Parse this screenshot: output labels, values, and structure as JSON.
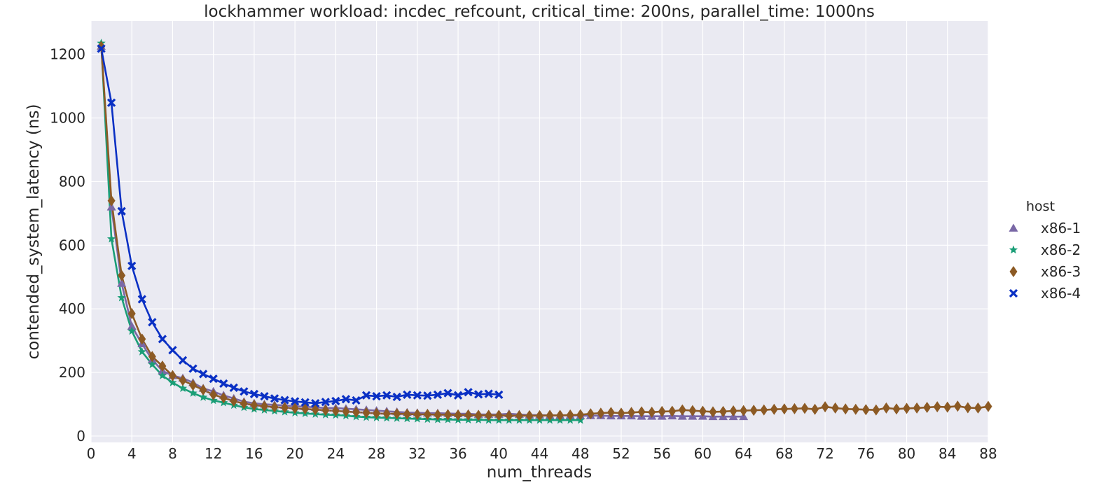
{
  "chart_data": {
    "type": "line",
    "title": "lockhammer workload: incdec_refcount, critical_time: 200ns, parallel_time: 1000ns",
    "xlabel": "num_threads",
    "ylabel": "contended_system_latency (ns)",
    "xlim": [
      0,
      88
    ],
    "ylim": [
      -20,
      1305
    ],
    "xticks": [
      "0",
      "4",
      "8",
      "12",
      "16",
      "20",
      "24",
      "28",
      "32",
      "36",
      "40",
      "44",
      "48",
      "52",
      "56",
      "60",
      "64",
      "68",
      "72",
      "76",
      "80",
      "84",
      "88"
    ],
    "yticks": [
      "0",
      "200",
      "400",
      "600",
      "800",
      "1000",
      "1200"
    ],
    "grid": true,
    "legend": {
      "title": "host",
      "position": "right"
    },
    "series": [
      {
        "name": "x86-1",
        "color": "#7a68a6",
        "marker": "triangle",
        "x": [
          1,
          2,
          3,
          4,
          5,
          6,
          7,
          8,
          9,
          10,
          11,
          12,
          13,
          14,
          15,
          16,
          17,
          18,
          19,
          20,
          21,
          22,
          23,
          24,
          25,
          26,
          27,
          28,
          29,
          30,
          31,
          32,
          33,
          34,
          35,
          36,
          37,
          38,
          39,
          40,
          41,
          42,
          43,
          44,
          45,
          46,
          47,
          48,
          49,
          50,
          51,
          52,
          53,
          54,
          55,
          56,
          57,
          58,
          59,
          60,
          61,
          62,
          63,
          64
        ],
        "y": [
          1225,
          720,
          480,
          345,
          290,
          240,
          205,
          190,
          182,
          168,
          150,
          140,
          128,
          118,
          108,
          103,
          100,
          98,
          96,
          94,
          92,
          90,
          88,
          88,
          86,
          84,
          82,
          80,
          78,
          76,
          74,
          73,
          72,
          72,
          71,
          70,
          70,
          68,
          68,
          68,
          70,
          68,
          66,
          66,
          65,
          65,
          65,
          64,
          64,
          64,
          63,
          63,
          63,
          62,
          62,
          62,
          63,
          62,
          62,
          62,
          61,
          61,
          61,
          61
        ]
      },
      {
        "name": "x86-2",
        "color": "#1a9e77",
        "marker": "star",
        "x": [
          1,
          2,
          3,
          4,
          5,
          6,
          7,
          8,
          9,
          10,
          11,
          12,
          13,
          14,
          15,
          16,
          17,
          18,
          19,
          20,
          21,
          22,
          23,
          24,
          25,
          26,
          27,
          28,
          29,
          30,
          31,
          32,
          33,
          34,
          35,
          36,
          37,
          38,
          39,
          40,
          41,
          42,
          43,
          44,
          45,
          46,
          47,
          48
        ],
        "y": [
          1235,
          620,
          435,
          330,
          265,
          225,
          190,
          168,
          150,
          135,
          122,
          112,
          105,
          97,
          90,
          85,
          82,
          79,
          76,
          73,
          71,
          69,
          67,
          66,
          64,
          61,
          59,
          58,
          57,
          56,
          55,
          54,
          53,
          52,
          52,
          51,
          51,
          51,
          50,
          50,
          50,
          50,
          50,
          50,
          50,
          50,
          50,
          50
        ]
      },
      {
        "name": "x86-3",
        "color": "#8c5a24",
        "marker": "diamond",
        "x": [
          1,
          2,
          3,
          4,
          5,
          6,
          7,
          8,
          9,
          10,
          11,
          12,
          13,
          14,
          15,
          16,
          17,
          18,
          19,
          20,
          21,
          22,
          23,
          24,
          25,
          26,
          27,
          28,
          29,
          30,
          31,
          32,
          33,
          34,
          35,
          36,
          37,
          38,
          39,
          40,
          41,
          42,
          43,
          44,
          45,
          46,
          47,
          48,
          49,
          50,
          51,
          52,
          53,
          54,
          55,
          56,
          57,
          58,
          59,
          60,
          61,
          62,
          63,
          64,
          65,
          66,
          67,
          68,
          69,
          70,
          71,
          72,
          73,
          74,
          75,
          76,
          77,
          78,
          79,
          80,
          81,
          82,
          83,
          84,
          85,
          86,
          87,
          88
        ],
        "y": [
          1225,
          740,
          505,
          385,
          305,
          250,
          220,
          190,
          175,
          160,
          145,
          130,
          120,
          110,
          102,
          97,
          94,
          91,
          89,
          87,
          85,
          83,
          81,
          79,
          77,
          75,
          73,
          71,
          70,
          70,
          69,
          68,
          68,
          67,
          67,
          66,
          66,
          65,
          65,
          65,
          64,
          64,
          64,
          64,
          65,
          65,
          66,
          67,
          70,
          72,
          74,
          72,
          74,
          76,
          75,
          77,
          78,
          82,
          80,
          78,
          76,
          77,
          79,
          80,
          81,
          82,
          84,
          85,
          86,
          87,
          84,
          92,
          88,
          85,
          84,
          83,
          82,
          88,
          85,
          87,
          88,
          90,
          92,
          91,
          94,
          89,
          88,
          93
        ]
      },
      {
        "name": "x86-4",
        "color": "#0a30c4",
        "marker": "x",
        "x": [
          1,
          2,
          3,
          4,
          5,
          6,
          7,
          8,
          9,
          10,
          11,
          12,
          13,
          14,
          15,
          16,
          17,
          18,
          19,
          20,
          21,
          22,
          23,
          24,
          25,
          26,
          27,
          28,
          29,
          30,
          31,
          32,
          33,
          34,
          35,
          36,
          37,
          38,
          39,
          40
        ],
        "y": [
          1218,
          1048,
          707,
          535,
          430,
          358,
          305,
          270,
          238,
          212,
          195,
          180,
          165,
          152,
          140,
          132,
          125,
          118,
          113,
          109,
          106,
          103,
          107,
          110,
          116,
          112,
          128,
          125,
          128,
          123,
          130,
          128,
          127,
          130,
          135,
          128,
          138,
          131,
          133,
          130
        ]
      }
    ]
  }
}
